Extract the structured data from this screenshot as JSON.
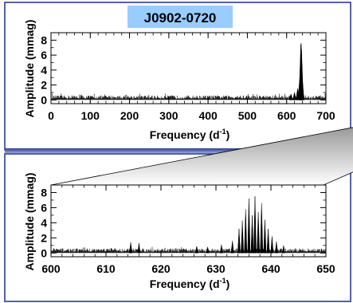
{
  "chart_data": [
    {
      "type": "line",
      "title": "J0902-0720",
      "xlabel": "Frequency (d",
      "xlabel_sup": "-1",
      "xlabel_close": ")",
      "ylabel": "Amplitude (mmag)",
      "xlim": [
        0,
        700
      ],
      "ylim": [
        -0.5,
        9
      ],
      "xticks": [
        0,
        100,
        200,
        300,
        400,
        500,
        600,
        700
      ],
      "yticks": [
        0,
        2,
        4,
        6,
        8
      ],
      "title_box_color": "#99ccff",
      "noise_level": 0.6,
      "peaks": [
        {
          "x": 611,
          "y": 0.8
        },
        {
          "x": 620,
          "y": 1.0
        },
        {
          "x": 628,
          "y": 1.5
        },
        {
          "x": 633,
          "y": 2.6
        },
        {
          "x": 635,
          "y": 4.6
        },
        {
          "x": 636,
          "y": 7.4
        },
        {
          "x": 637,
          "y": 7.6
        },
        {
          "x": 638,
          "y": 6.7
        },
        {
          "x": 640,
          "y": 2.8
        }
      ]
    },
    {
      "type": "line",
      "title": "",
      "xlabel": "Frequency (d",
      "xlabel_sup": "-1",
      "xlabel_close": ")",
      "ylabel": "Amplitude (mmag)",
      "xlim": [
        600,
        650
      ],
      "ylim": [
        -0.5,
        9
      ],
      "xticks": [
        600,
        610,
        620,
        630,
        640,
        650
      ],
      "yticks": [
        0,
        2,
        4,
        6,
        8
      ],
      "noise_level": 0.6,
      "peaks": [
        {
          "x": 614.5,
          "y": 1.4
        },
        {
          "x": 616.0,
          "y": 1.3
        },
        {
          "x": 626.5,
          "y": 0.9
        },
        {
          "x": 628.5,
          "y": 0.8
        },
        {
          "x": 631.0,
          "y": 1.1
        },
        {
          "x": 633.0,
          "y": 1.6
        },
        {
          "x": 634.2,
          "y": 3.2
        },
        {
          "x": 634.8,
          "y": 4.3
        },
        {
          "x": 635.4,
          "y": 5.8
        },
        {
          "x": 636.0,
          "y": 7.2
        },
        {
          "x": 636.6,
          "y": 5.0
        },
        {
          "x": 637.1,
          "y": 7.5
        },
        {
          "x": 637.7,
          "y": 5.4
        },
        {
          "x": 638.3,
          "y": 6.6
        },
        {
          "x": 638.9,
          "y": 4.4
        },
        {
          "x": 639.5,
          "y": 3.2
        },
        {
          "x": 640.2,
          "y": 2.2
        },
        {
          "x": 641.0,
          "y": 1.5
        },
        {
          "x": 642.3,
          "y": 1.0
        }
      ]
    }
  ]
}
